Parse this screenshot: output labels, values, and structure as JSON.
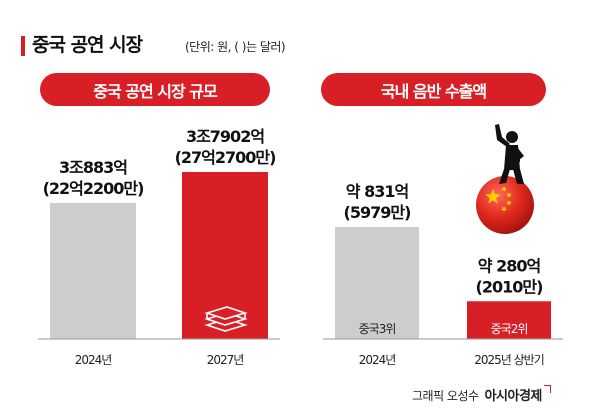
{
  "header": {
    "title": "중국 공연 시장",
    "subtitle": "(단위: 원, ( )는 달러)"
  },
  "colors": {
    "accent": "#d91f26",
    "bar_gray": "#cdcdcd"
  },
  "chart_data": [
    {
      "type": "bar",
      "title": "중국 공연 시장 규모",
      "categories": [
        "2024년",
        "2027년"
      ],
      "values": [
        30883,
        37902
      ],
      "unit": "억원",
      "value_labels": [
        "3조883억",
        "3조7902억"
      ],
      "secondary_labels": [
        "(22억2200만)",
        "(27억2700만)"
      ],
      "bar_colors": [
        "#cdcdcd",
        "#d91f26"
      ],
      "icons": [
        "",
        "money-stack-icon"
      ],
      "inner_labels": [
        "",
        ""
      ]
    },
    {
      "type": "bar",
      "title": "국내 음반 수출액",
      "categories": [
        "2024년",
        "2025년 상반기"
      ],
      "values": [
        831,
        280
      ],
      "unit": "억원",
      "value_labels": [
        "약 831억",
        "약 280억"
      ],
      "secondary_labels": [
        "(5979만)",
        "(2010만)"
      ],
      "bar_colors": [
        "#cdcdcd",
        "#d91f26"
      ],
      "icons": [
        "",
        ""
      ],
      "inner_labels": [
        "중국3위",
        "중국2위"
      ]
    }
  ],
  "decoration": {
    "figure": "singer-silhouette-icon",
    "ball": "china-flag-ball-icon"
  },
  "credit": {
    "text": "그래픽 오성수",
    "brand": "아시아경제"
  }
}
